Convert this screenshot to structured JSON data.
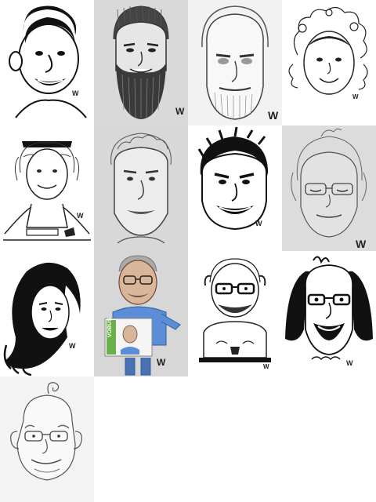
{
  "gallery": {
    "columns": 4,
    "rows": 5,
    "items": [
      {
        "id": "caricature-1",
        "background": "#ffffff",
        "style": "ink"
      },
      {
        "id": "caricature-2",
        "background": "#d9d9d9",
        "style": "pencil"
      },
      {
        "id": "caricature-3",
        "background": "#f2f2f2",
        "style": "pencil"
      },
      {
        "id": "caricature-4",
        "background": "#ffffff",
        "style": "ink"
      },
      {
        "id": "caricature-5",
        "background": "#ffffff",
        "style": "ink"
      },
      {
        "id": "caricature-6",
        "background": "#d8d8d8",
        "style": "pencil"
      },
      {
        "id": "caricature-7",
        "background": "#ffffff",
        "style": "ink"
      },
      {
        "id": "caricature-8",
        "background": "#dcdcdc",
        "style": "pencil"
      },
      {
        "id": "caricature-9",
        "background": "#ffffff",
        "style": "ink"
      },
      {
        "id": "caricature-10",
        "background": "#d7d7d7",
        "style": "colored-pencil"
      },
      {
        "id": "caricature-11",
        "background": "#ffffff",
        "style": "ink"
      },
      {
        "id": "caricature-12",
        "background": "#ffffff",
        "style": "ink"
      },
      {
        "id": "caricature-13",
        "background": "#f3f3f3",
        "style": "pencil"
      }
    ]
  },
  "artist_signature": "W",
  "sign_text": "VOBUS"
}
